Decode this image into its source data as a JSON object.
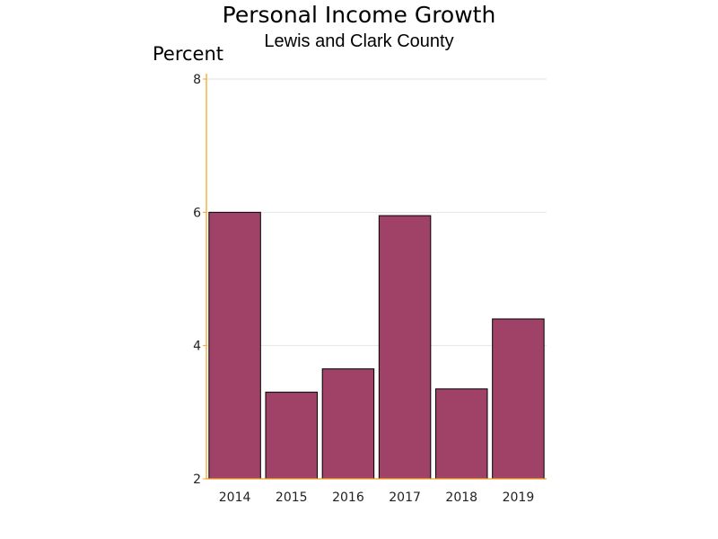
{
  "chart_data": {
    "type": "bar",
    "title": "Personal Income Growth",
    "subtitle": "Lewis and Clark County",
    "ylabel": "Percent",
    "xlabel": "",
    "categories": [
      "2014",
      "2015",
      "2016",
      "2017",
      "2018",
      "2019"
    ],
    "values": [
      6.0,
      3.3,
      3.65,
      5.95,
      3.35,
      4.4
    ],
    "ylim": [
      2,
      8
    ],
    "yticks": [
      2,
      4,
      6,
      8
    ],
    "grid": true,
    "legend": "none",
    "colors": {
      "bar": "#a04268",
      "axis": "#f0a020",
      "grid": "#e6e6e6"
    }
  }
}
